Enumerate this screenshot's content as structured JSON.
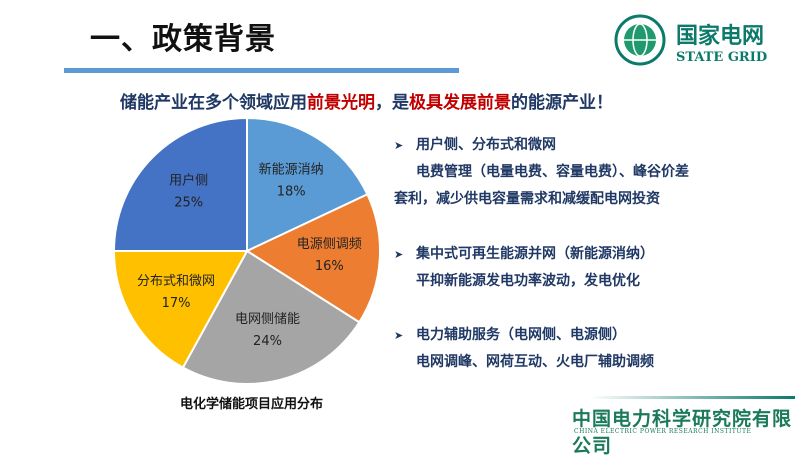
{
  "title": "一、政策背景",
  "logo": {
    "cn": "国家电网",
    "en": "STATE GRID"
  },
  "headline": {
    "part1": "储能产业在多个领域应用",
    "part2": "前景光明",
    "part3": "，是",
    "part4": "极具发展前景",
    "part5": "的能源产业！"
  },
  "bullets": [
    {
      "title": "用户侧、分布式和微网",
      "lines": [
        "电费管理（电量电费、容量电费）、峰谷价差",
        "套利，减少供电容量需求和减缓配电网投资"
      ]
    },
    {
      "title": "集中式可再生能源并网（新能源消纳）",
      "lines": [
        "平抑新能源发电功率波动，发电优化"
      ]
    },
    {
      "title": "电力辅助服务（电网侧、电源侧）",
      "lines": [
        "电网调峰、网荷互动、火电厂辅助调频"
      ]
    }
  ],
  "footer": {
    "cn": "中国电力科学研究院有限公司",
    "en": "CHINA ELECTRIC POWER RESEARCH INSTITUTE"
  },
  "chart_data": {
    "type": "pie",
    "title": "电化学储能项目应用分布",
    "start": "12 o'clock, clockwise",
    "slices": [
      {
        "label": "新能源消纳",
        "value": 18,
        "pct": "18%",
        "color": "#5b9bd5"
      },
      {
        "label": "电源侧调频",
        "value": 16,
        "pct": "16%",
        "color": "#ed7d31"
      },
      {
        "label": "电网侧储能",
        "value": 24,
        "pct": "24%",
        "color": "#a5a5a5"
      },
      {
        "label": "分布式和微网",
        "value": 17,
        "pct": "17%",
        "color": "#ffc000"
      },
      {
        "label": "用户侧",
        "value": 25,
        "pct": "25%",
        "color": "#4472c4"
      }
    ]
  }
}
